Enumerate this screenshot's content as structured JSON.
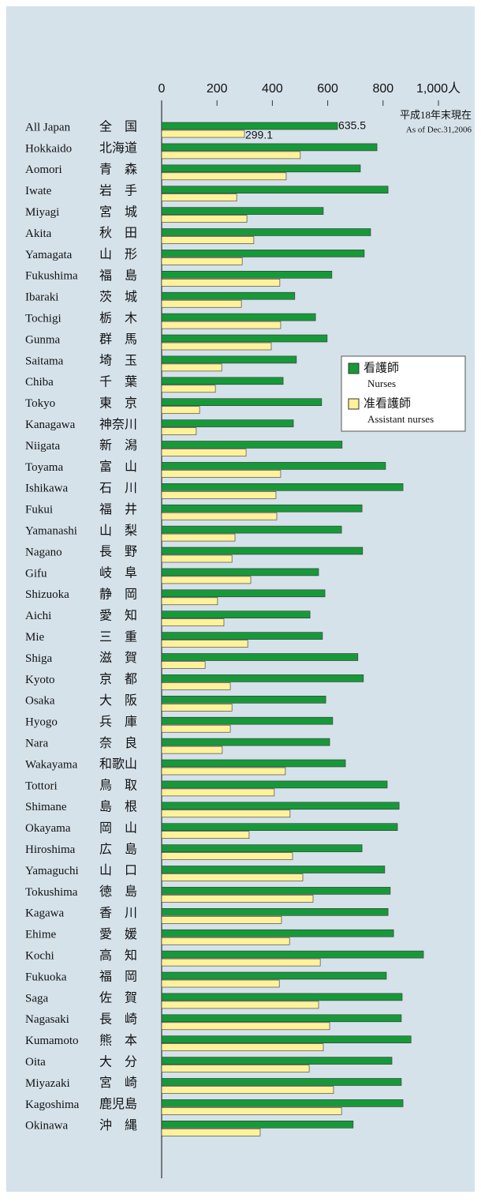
{
  "chart_data": {
    "type": "hbar",
    "note_ja": "平成18年末現在",
    "note_en": "As of Dec.31,2006",
    "categories": [
      "All Japan",
      "Hokkaido",
      "Aomori",
      "Iwate",
      "Miyagi",
      "Akita",
      "Yamagata",
      "Fukushima",
      "Ibaraki",
      "Tochigi",
      "Gunma",
      "Saitama",
      "Chiba",
      "Tokyo",
      "Kanagawa",
      "Niigata",
      "Toyama",
      "Ishikawa",
      "Fukui",
      "Yamanashi",
      "Nagano",
      "Gifu",
      "Shizuoka",
      "Aichi",
      "Mie",
      "Shiga",
      "Kyoto",
      "Osaka",
      "Hyogo",
      "Nara",
      "Wakayama",
      "Tottori",
      "Shimane",
      "Okayama",
      "Hiroshima",
      "Yamaguchi",
      "Tokushima",
      "Kagawa",
      "Ehime",
      "Kochi",
      "Fukuoka",
      "Saga",
      "Nagasaki",
      "Kumamoto",
      "Oita",
      "Miyazaki",
      "Kagoshima",
      "Okinawa"
    ],
    "categories_ja": [
      "全　国",
      "北海道",
      "青　森",
      "岩　手",
      "宮　城",
      "秋　田",
      "山　形",
      "福　島",
      "茨　城",
      "栃　木",
      "群　馬",
      "埼　玉",
      "千　葉",
      "東　京",
      "神奈川",
      "新　潟",
      "富　山",
      "石　川",
      "福　井",
      "山　梨",
      "長　野",
      "岐　阜",
      "静　岡",
      "愛　知",
      "三　重",
      "滋　賀",
      "京　都",
      "大　阪",
      "兵　庫",
      "奈　良",
      "和歌山",
      "鳥　取",
      "島　根",
      "岡　山",
      "広　島",
      "山　口",
      "徳　島",
      "香　川",
      "愛　媛",
      "高　知",
      "福　岡",
      "佐　賀",
      "長　崎",
      "熊　本",
      "大　分",
      "宮　崎",
      "鹿児島",
      "沖　縄"
    ],
    "series": [
      {
        "name": "看護師",
        "name_en": "Nurses",
        "color": "#17993a",
        "values": [
          635.5,
          778,
          718,
          818,
          584,
          755,
          732,
          615,
          481,
          556,
          598,
          487,
          439,
          578,
          476,
          652,
          809,
          872,
          724,
          650,
          726,
          567,
          590,
          536,
          581,
          709,
          729,
          593,
          618,
          607,
          664,
          815,
          858,
          852,
          724,
          806,
          826,
          818,
          838,
          946,
          812,
          869,
          866,
          901,
          832,
          866,
          872,
          692
        ]
      },
      {
        "name": "准看護師",
        "name_en": "Assistant nurses",
        "color": "#fff29a",
        "values": [
          299.1,
          501,
          450,
          271,
          308,
          333,
          291,
          427,
          288,
          430,
          396,
          217,
          194,
          137,
          125,
          305,
          430,
          413,
          416,
          265,
          254,
          322,
          202,
          225,
          311,
          157,
          248,
          254,
          248,
          219,
          447,
          407,
          464,
          316,
          473,
          510,
          547,
          433,
          462,
          573,
          425,
          567,
          607,
          584,
          533,
          621,
          650,
          356
        ]
      }
    ],
    "xlim": [
      0,
      1000
    ],
    "xticks": [
      0,
      200,
      400,
      600,
      800,
      {
        "value": 1000,
        "label": "1,000人"
      }
    ]
  }
}
